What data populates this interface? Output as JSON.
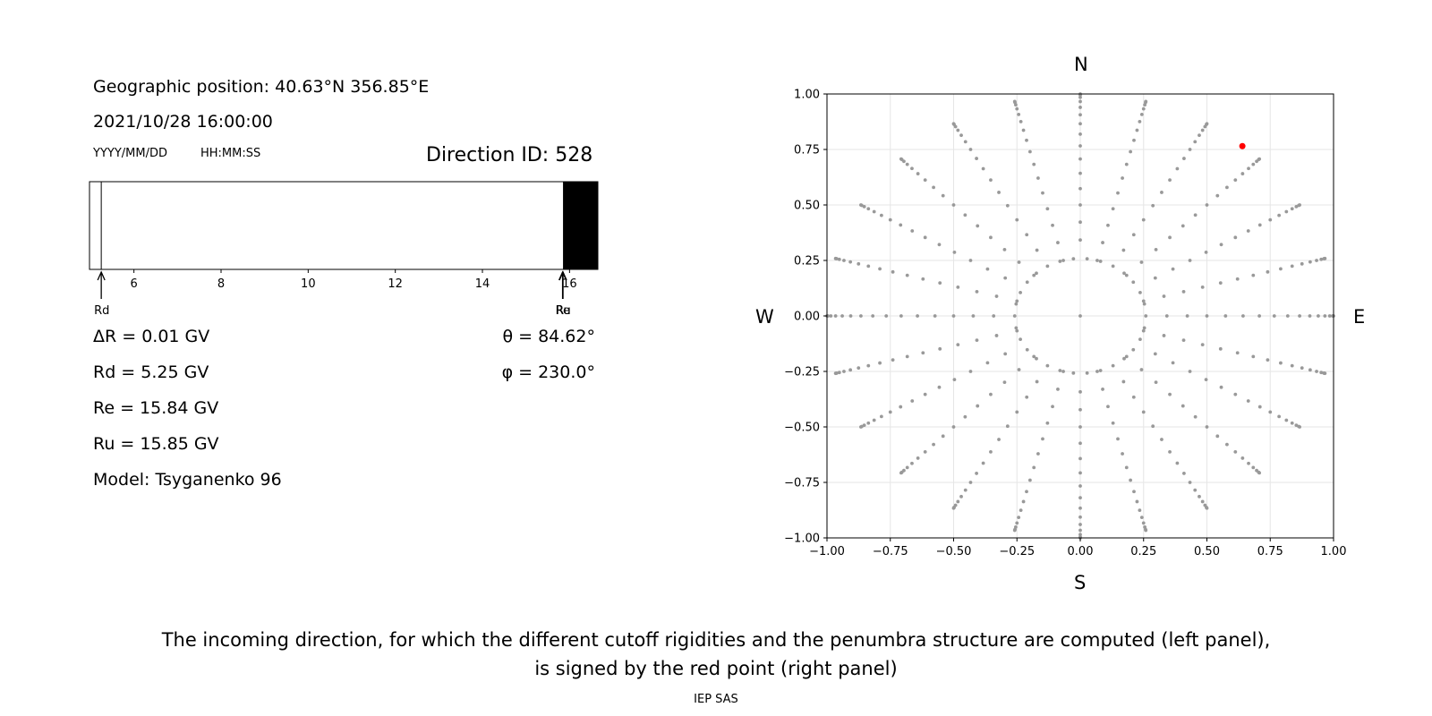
{
  "info": {
    "geo_label": "Geographic position:",
    "latitude": "40.63°N",
    "longitude": "356.85°E",
    "datetime": "2021/10/28 16:00:00",
    "date_format": "YYYY/MM/DD",
    "time_format": "HH:MM:SS",
    "direction_label": "Direction ID:",
    "direction_id": "528",
    "delta_r_label": "ΔR = 0.01 GV",
    "rd_label": "Rd = 5.25 GV",
    "re_label": "Re = 15.84 GV",
    "ru_label": "Ru = 15.85 GV",
    "model_label": "Model: Tsyganenko 96",
    "theta_label": "θ = 84.62°",
    "phi_label": "φ = 230.0°"
  },
  "penumbra": {
    "xlim": [
      4.98,
      16.65
    ],
    "ticks": [
      6,
      8,
      10,
      12,
      14,
      16
    ],
    "rd": 5.25,
    "re": 15.84,
    "ru": 15.85,
    "rd_marker": "Rd",
    "re_marker": "Re",
    "ru_marker": "Ru"
  },
  "chart_data": {
    "type": "scatter",
    "title": "",
    "compass": {
      "north": "N",
      "south": "S",
      "west": "W",
      "east": "E"
    },
    "xlim": [
      -1.0,
      1.0
    ],
    "ylim": [
      -1.0,
      1.0
    ],
    "x_ticks": [
      "−1.00",
      "−0.75",
      "−0.50",
      "−0.25",
      "0.00",
      "0.25",
      "0.50",
      "0.75",
      "1.00"
    ],
    "y_ticks": [
      "1.00",
      "0.75",
      "0.50",
      "0.25",
      "0.00",
      "−0.25",
      "−0.50",
      "−0.75",
      "−1.00"
    ],
    "grid": true,
    "series": [
      {
        "name": "directions",
        "color": "#999999",
        "azimuth_step_deg": 15,
        "zenith_step_deg": 5,
        "zenith_max_deg": 90,
        "inner_ring_zenith_deg": 15
      },
      {
        "name": "selected",
        "color": "#ff0000",
        "x": 0.64,
        "y": 0.765
      }
    ]
  },
  "caption": {
    "line1": "The incoming direction, for which the different cutoff rigidities and the penumbra structure are computed (left panel),",
    "line2": "is signed by the red point (right panel)"
  },
  "footer": "IEP SAS"
}
